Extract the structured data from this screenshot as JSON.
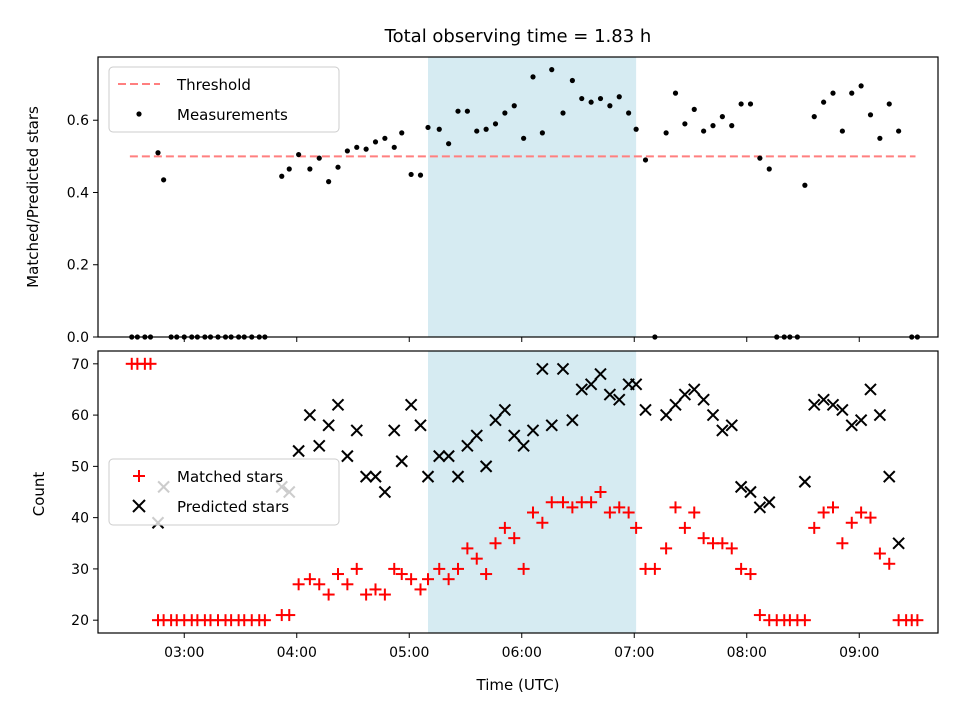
{
  "chart_data": [
    {
      "type": "scatter",
      "title": "Total observing time = 1.83 h",
      "ylabel": "Matched/Predicted stars",
      "xlim": [
        "02:14",
        "09:42"
      ],
      "ylim": [
        0,
        0.775
      ],
      "yticks": [
        0.0,
        0.2,
        0.4,
        0.6
      ],
      "ytick_labels": [
        "0.0",
        "0.2",
        "0.4",
        "0.6"
      ],
      "xticks": [
        "03:00",
        "04:00",
        "05:00",
        "06:00",
        "07:00",
        "08:00",
        "09:00"
      ],
      "xtick_labels_shown": false,
      "legend_position": "top-left",
      "highlight_span": {
        "start": "05:10",
        "end": "07:01",
        "color": "#add8e6"
      },
      "threshold": {
        "name": "Threshold",
        "value": 0.5,
        "x_start": "02:31",
        "x_end": "09:30",
        "color": "#ff7f7f",
        "style": "dashed"
      },
      "series": [
        {
          "name": "Measurements",
          "color": "#000000",
          "marker": "dot",
          "points": [
            [
              "02:32",
              0
            ],
            [
              "02:35",
              0
            ],
            [
              "02:39",
              0
            ],
            [
              "02:42",
              0
            ],
            [
              "02:46",
              0.51
            ],
            [
              "02:49",
              0.435
            ],
            [
              "02:53",
              0
            ],
            [
              "02:56",
              0
            ],
            [
              "03:00",
              0
            ],
            [
              "03:04",
              0
            ],
            [
              "03:07",
              0
            ],
            [
              "03:11",
              0
            ],
            [
              "03:14",
              0
            ],
            [
              "03:18",
              0
            ],
            [
              "03:22",
              0
            ],
            [
              "03:25",
              0
            ],
            [
              "03:29",
              0
            ],
            [
              "03:32",
              0
            ],
            [
              "03:36",
              0
            ],
            [
              "03:40",
              0
            ],
            [
              "03:43",
              0
            ],
            [
              "03:52",
              0.445
            ],
            [
              "03:56",
              0.465
            ],
            [
              "04:01",
              0.505
            ],
            [
              "04:07",
              0.465
            ],
            [
              "04:12",
              0.495
            ],
            [
              "04:17",
              0.43
            ],
            [
              "04:22",
              0.47
            ],
            [
              "04:27",
              0.515
            ],
            [
              "04:32",
              0.525
            ],
            [
              "04:37",
              0.52
            ],
            [
              "04:42",
              0.54
            ],
            [
              "04:47",
              0.55
            ],
            [
              "04:52",
              0.525
            ],
            [
              "04:56",
              0.565
            ],
            [
              "05:01",
              0.45
            ],
            [
              "05:06",
              0.448
            ],
            [
              "05:10",
              0.58
            ],
            [
              "05:16",
              0.575
            ],
            [
              "05:21",
              0.535
            ],
            [
              "05:26",
              0.625
            ],
            [
              "05:31",
              0.625
            ],
            [
              "05:36",
              0.57
            ],
            [
              "05:41",
              0.575
            ],
            [
              "05:46",
              0.59
            ],
            [
              "05:51",
              0.62
            ],
            [
              "05:56",
              0.64
            ],
            [
              "06:01",
              0.55
            ],
            [
              "06:06",
              0.72
            ],
            [
              "06:11",
              0.565
            ],
            [
              "06:16",
              0.74
            ],
            [
              "06:22",
              0.62
            ],
            [
              "06:27",
              0.71
            ],
            [
              "06:32",
              0.66
            ],
            [
              "06:37",
              0.65
            ],
            [
              "06:42",
              0.66
            ],
            [
              "06:47",
              0.64
            ],
            [
              "06:52",
              0.665
            ],
            [
              "06:57",
              0.62
            ],
            [
              "07:01",
              0.575
            ],
            [
              "07:06",
              0.49
            ],
            [
              "07:11",
              0
            ],
            [
              "07:17",
              0.565
            ],
            [
              "07:22",
              0.675
            ],
            [
              "07:27",
              0.59
            ],
            [
              "07:32",
              0.63
            ],
            [
              "07:37",
              0.57
            ],
            [
              "07:42",
              0.585
            ],
            [
              "07:47",
              0.61
            ],
            [
              "07:52",
              0.585
            ],
            [
              "07:57",
              0.645
            ],
            [
              "08:02",
              0.645
            ],
            [
              "08:07",
              0.495
            ],
            [
              "08:12",
              0.465
            ],
            [
              "08:16",
              0
            ],
            [
              "08:20",
              0
            ],
            [
              "08:23",
              0
            ],
            [
              "08:27",
              0
            ],
            [
              "08:31",
              0.42
            ],
            [
              "08:36",
              0.61
            ],
            [
              "08:41",
              0.65
            ],
            [
              "08:46",
              0.675
            ],
            [
              "08:51",
              0.57
            ],
            [
              "08:56",
              0.675
            ],
            [
              "09:01",
              0.695
            ],
            [
              "09:06",
              0.615
            ],
            [
              "09:11",
              0.55
            ],
            [
              "09:16",
              0.645
            ],
            [
              "09:21",
              0.57
            ],
            [
              "09:28",
              0
            ],
            [
              "09:31",
              0
            ]
          ]
        }
      ]
    },
    {
      "type": "scatter",
      "xlabel": "Time (UTC)",
      "ylabel": "Count",
      "xlim": [
        "02:14",
        "09:42"
      ],
      "ylim": [
        17.5,
        72.5
      ],
      "yticks": [
        20,
        30,
        40,
        50,
        60,
        70
      ],
      "ytick_labels": [
        "20",
        "30",
        "40",
        "50",
        "60",
        "70"
      ],
      "xticks": [
        "03:00",
        "04:00",
        "05:00",
        "06:00",
        "07:00",
        "08:00",
        "09:00"
      ],
      "xtick_labels": [
        "03:00",
        "04:00",
        "05:00",
        "06:00",
        "07:00",
        "08:00",
        "09:00"
      ],
      "legend_position": "center-left",
      "highlight_span": {
        "start": "05:10",
        "end": "07:01",
        "color": "#add8e6"
      },
      "series": [
        {
          "name": "Matched stars",
          "color": "#ff0000",
          "marker": "plus",
          "points": [
            [
              "02:32",
              70
            ],
            [
              "02:35",
              70
            ],
            [
              "02:39",
              70
            ],
            [
              "02:42",
              70
            ],
            [
              "02:46",
              20
            ],
            [
              "02:49",
              20
            ],
            [
              "02:53",
              20
            ],
            [
              "02:56",
              20
            ],
            [
              "03:00",
              20
            ],
            [
              "03:04",
              20
            ],
            [
              "03:07",
              20
            ],
            [
              "03:11",
              20
            ],
            [
              "03:14",
              20
            ],
            [
              "03:18",
              20
            ],
            [
              "03:22",
              20
            ],
            [
              "03:25",
              20
            ],
            [
              "03:29",
              20
            ],
            [
              "03:32",
              20
            ],
            [
              "03:36",
              20
            ],
            [
              "03:40",
              20
            ],
            [
              "03:43",
              20
            ],
            [
              "03:52",
              21
            ],
            [
              "03:56",
              21
            ],
            [
              "04:01",
              27
            ],
            [
              "04:07",
              28
            ],
            [
              "04:12",
              27
            ],
            [
              "04:17",
              25
            ],
            [
              "04:22",
              29
            ],
            [
              "04:27",
              27
            ],
            [
              "04:32",
              30
            ],
            [
              "04:37",
              25
            ],
            [
              "04:42",
              26
            ],
            [
              "04:47",
              25
            ],
            [
              "04:52",
              30
            ],
            [
              "04:56",
              29
            ],
            [
              "05:01",
              28
            ],
            [
              "05:06",
              26
            ],
            [
              "05:10",
              28
            ],
            [
              "05:16",
              30
            ],
            [
              "05:21",
              28
            ],
            [
              "05:26",
              30
            ],
            [
              "05:31",
              34
            ],
            [
              "05:36",
              32
            ],
            [
              "05:41",
              29
            ],
            [
              "05:46",
              35
            ],
            [
              "05:51",
              38
            ],
            [
              "05:56",
              36
            ],
            [
              "06:01",
              30
            ],
            [
              "06:06",
              41
            ],
            [
              "06:11",
              39
            ],
            [
              "06:16",
              43
            ],
            [
              "06:22",
              43
            ],
            [
              "06:27",
              42
            ],
            [
              "06:32",
              43
            ],
            [
              "06:37",
              43
            ],
            [
              "06:42",
              45
            ],
            [
              "06:47",
              41
            ],
            [
              "06:52",
              42
            ],
            [
              "06:57",
              41
            ],
            [
              "07:01",
              38
            ],
            [
              "07:06",
              30
            ],
            [
              "07:11",
              30
            ],
            [
              "07:17",
              34
            ],
            [
              "07:22",
              42
            ],
            [
              "07:27",
              38
            ],
            [
              "07:32",
              41
            ],
            [
              "07:37",
              36
            ],
            [
              "07:42",
              35
            ],
            [
              "07:47",
              35
            ],
            [
              "07:52",
              34
            ],
            [
              "07:57",
              30
            ],
            [
              "08:02",
              29
            ],
            [
              "08:07",
              21
            ],
            [
              "08:12",
              20
            ],
            [
              "08:16",
              20
            ],
            [
              "08:20",
              20
            ],
            [
              "08:23",
              20
            ],
            [
              "08:27",
              20
            ],
            [
              "08:31",
              20
            ],
            [
              "08:36",
              38
            ],
            [
              "08:41",
              41
            ],
            [
              "08:46",
              42
            ],
            [
              "08:51",
              35
            ],
            [
              "08:56",
              39
            ],
            [
              "09:01",
              41
            ],
            [
              "09:06",
              40
            ],
            [
              "09:11",
              33
            ],
            [
              "09:16",
              31
            ],
            [
              "09:21",
              20
            ],
            [
              "09:25",
              20
            ],
            [
              "09:28",
              20
            ],
            [
              "09:31",
              20
            ]
          ]
        },
        {
          "name": "Predicted stars",
          "color": "#000000",
          "marker": "x",
          "points": [
            [
              "02:46",
              39
            ],
            [
              "02:49",
              46
            ],
            [
              "03:52",
              46
            ],
            [
              "03:56",
              45
            ],
            [
              "04:01",
              53
            ],
            [
              "04:07",
              60
            ],
            [
              "04:12",
              54
            ],
            [
              "04:17",
              58
            ],
            [
              "04:22",
              62
            ],
            [
              "04:27",
              52
            ],
            [
              "04:32",
              57
            ],
            [
              "04:37",
              48
            ],
            [
              "04:42",
              48
            ],
            [
              "04:47",
              45
            ],
            [
              "04:52",
              57
            ],
            [
              "04:56",
              51
            ],
            [
              "05:01",
              62
            ],
            [
              "05:06",
              58
            ],
            [
              "05:10",
              48
            ],
            [
              "05:16",
              52
            ],
            [
              "05:21",
              52
            ],
            [
              "05:26",
              48
            ],
            [
              "05:31",
              54
            ],
            [
              "05:36",
              56
            ],
            [
              "05:41",
              50
            ],
            [
              "05:46",
              59
            ],
            [
              "05:51",
              61
            ],
            [
              "05:56",
              56
            ],
            [
              "06:01",
              54
            ],
            [
              "06:06",
              57
            ],
            [
              "06:11",
              69
            ],
            [
              "06:16",
              58
            ],
            [
              "06:22",
              69
            ],
            [
              "06:27",
              59
            ],
            [
              "06:32",
              65
            ],
            [
              "06:37",
              66
            ],
            [
              "06:42",
              68
            ],
            [
              "06:47",
              64
            ],
            [
              "06:52",
              63
            ],
            [
              "06:57",
              66
            ],
            [
              "07:01",
              66
            ],
            [
              "07:06",
              61
            ],
            [
              "07:17",
              60
            ],
            [
              "07:22",
              62
            ],
            [
              "07:27",
              64
            ],
            [
              "07:32",
              65
            ],
            [
              "07:37",
              63
            ],
            [
              "07:42",
              60
            ],
            [
              "07:47",
              57
            ],
            [
              "07:52",
              58
            ],
            [
              "07:57",
              46
            ],
            [
              "08:02",
              45
            ],
            [
              "08:07",
              42
            ],
            [
              "08:12",
              43
            ],
            [
              "08:31",
              47
            ],
            [
              "08:36",
              62
            ],
            [
              "08:41",
              63
            ],
            [
              "08:46",
              62
            ],
            [
              "08:51",
              61
            ],
            [
              "08:56",
              58
            ],
            [
              "09:01",
              59
            ],
            [
              "09:06",
              65
            ],
            [
              "09:11",
              60
            ],
            [
              "09:16",
              48
            ],
            [
              "09:21",
              35
            ]
          ]
        }
      ]
    }
  ]
}
